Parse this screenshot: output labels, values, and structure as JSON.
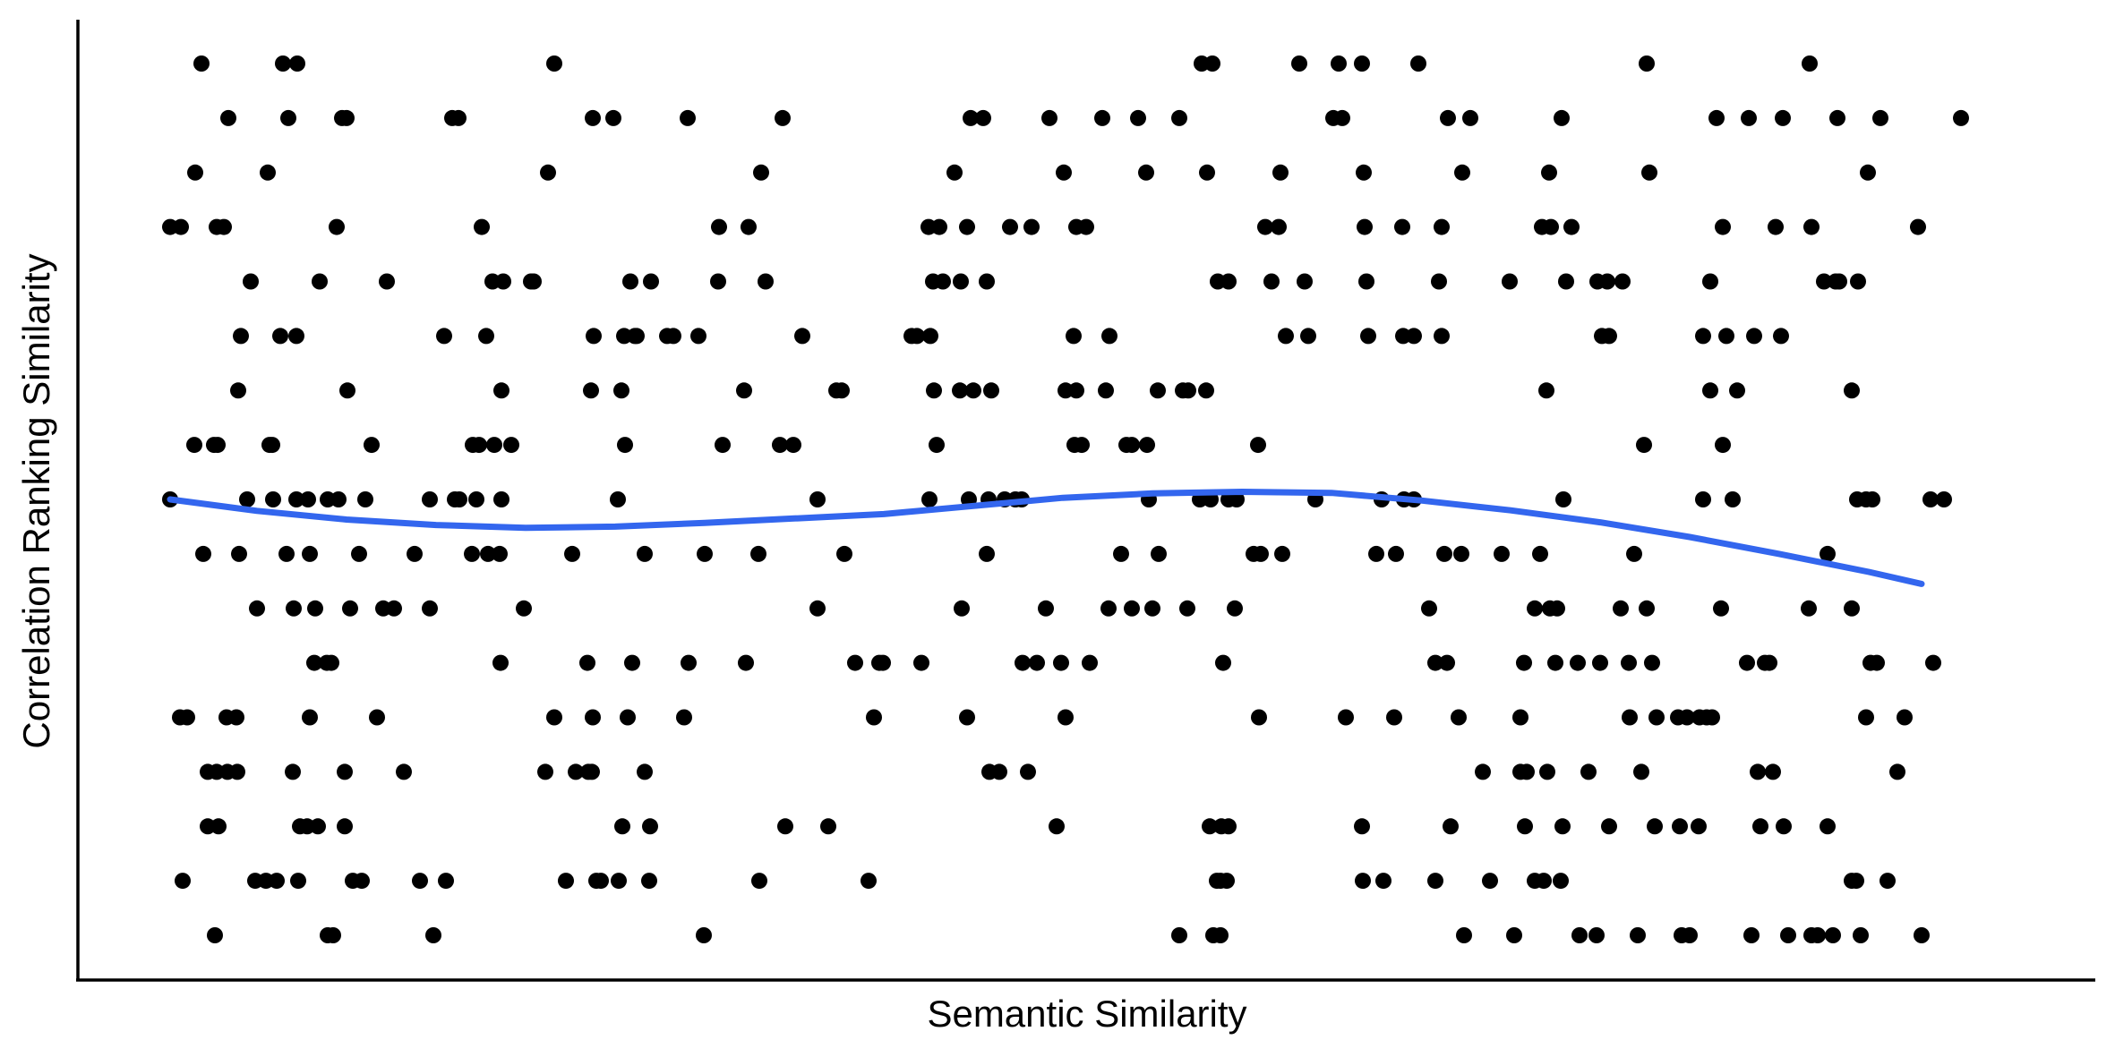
{
  "chart_data": {
    "type": "scatter",
    "title": "",
    "xlabel": "Semantic Similarity",
    "ylabel": "Correlation Ranking Similarity",
    "xlim": [
      0,
      2262
    ],
    "ylim": [
      0,
      17
    ],
    "grid": false,
    "legend": "none",
    "colors": {
      "points": "#000000",
      "trend": "#3366EE",
      "axis": "#000000"
    },
    "points": [
      [
        138,
        16
      ],
      [
        229,
        16
      ],
      [
        245,
        16
      ],
      [
        532,
        16
      ],
      [
        1255,
        16
      ],
      [
        1267,
        16
      ],
      [
        1364,
        16
      ],
      [
        1408,
        16
      ],
      [
        1434,
        16
      ],
      [
        1497,
        16
      ],
      [
        1752,
        16
      ],
      [
        1934,
        16
      ],
      [
        168,
        15
      ],
      [
        235,
        15
      ],
      [
        295,
        15
      ],
      [
        300,
        15
      ],
      [
        418,
        15
      ],
      [
        425,
        15
      ],
      [
        575,
        15
      ],
      [
        598,
        15
      ],
      [
        681,
        15
      ],
      [
        787,
        15
      ],
      [
        997,
        15
      ],
      [
        1011,
        15
      ],
      [
        1085,
        15
      ],
      [
        1144,
        15
      ],
      [
        1184,
        15
      ],
      [
        1230,
        15
      ],
      [
        1402,
        15
      ],
      [
        1412,
        15
      ],
      [
        1530,
        15
      ],
      [
        1555,
        15
      ],
      [
        1657,
        15
      ],
      [
        1830,
        15
      ],
      [
        1866,
        15
      ],
      [
        1904,
        15
      ],
      [
        1965,
        15
      ],
      [
        2013,
        15
      ],
      [
        2103,
        15
      ],
      [
        131,
        14
      ],
      [
        212,
        14
      ],
      [
        525,
        14
      ],
      [
        763,
        14
      ],
      [
        979,
        14
      ],
      [
        1101,
        14
      ],
      [
        1193,
        14
      ],
      [
        1261,
        14
      ],
      [
        1343,
        14
      ],
      [
        1436,
        14
      ],
      [
        1546,
        14
      ],
      [
        1643,
        14
      ],
      [
        1755,
        14
      ],
      [
        1999,
        14
      ],
      [
        103,
        13
      ],
      [
        115,
        13
      ],
      [
        155,
        13
      ],
      [
        163,
        13
      ],
      [
        289,
        13
      ],
      [
        451,
        13
      ],
      [
        716,
        13
      ],
      [
        749,
        13
      ],
      [
        950,
        13
      ],
      [
        962,
        13
      ],
      [
        993,
        13
      ],
      [
        1041,
        13
      ],
      [
        1065,
        13
      ],
      [
        1115,
        13
      ],
      [
        1126,
        13
      ],
      [
        1326,
        13
      ],
      [
        1341,
        13
      ],
      [
        1437,
        13
      ],
      [
        1479,
        13
      ],
      [
        1523,
        13
      ],
      [
        1635,
        13
      ],
      [
        1645,
        13
      ],
      [
        1668,
        13
      ],
      [
        1837,
        13
      ],
      [
        1896,
        13
      ],
      [
        1936,
        13
      ],
      [
        2055,
        13
      ],
      [
        193,
        12
      ],
      [
        270,
        12
      ],
      [
        345,
        12
      ],
      [
        463,
        12
      ],
      [
        475,
        12
      ],
      [
        506,
        12
      ],
      [
        509,
        12
      ],
      [
        617,
        12
      ],
      [
        640,
        12
      ],
      [
        715,
        12
      ],
      [
        768,
        12
      ],
      [
        955,
        12
      ],
      [
        966,
        12
      ],
      [
        986,
        12
      ],
      [
        1015,
        12
      ],
      [
        1273,
        12
      ],
      [
        1285,
        12
      ],
      [
        1333,
        12
      ],
      [
        1370,
        12
      ],
      [
        1439,
        12
      ],
      [
        1520,
        12
      ],
      [
        1599,
        12
      ],
      [
        1662,
        12
      ],
      [
        1697,
        12
      ],
      [
        1708,
        12
      ],
      [
        1725,
        12
      ],
      [
        1823,
        12
      ],
      [
        1950,
        12
      ],
      [
        1963,
        12
      ],
      [
        1967,
        12
      ],
      [
        1988,
        12
      ],
      [
        182,
        11
      ],
      [
        226,
        11
      ],
      [
        244,
        11
      ],
      [
        409,
        11
      ],
      [
        456,
        11
      ],
      [
        576,
        11
      ],
      [
        610,
        11
      ],
      [
        622,
        11
      ],
      [
        624,
        11
      ],
      [
        658,
        11
      ],
      [
        665,
        11
      ],
      [
        693,
        11
      ],
      [
        809,
        11
      ],
      [
        931,
        11
      ],
      [
        937,
        11
      ],
      [
        952,
        11
      ],
      [
        1112,
        11
      ],
      [
        1152,
        11
      ],
      [
        1349,
        11
      ],
      [
        1374,
        11
      ],
      [
        1441,
        11
      ],
      [
        1480,
        11
      ],
      [
        1492,
        11
      ],
      [
        1523,
        11
      ],
      [
        1702,
        11
      ],
      [
        1710,
        11
      ],
      [
        1815,
        11
      ],
      [
        1841,
        11
      ],
      [
        1872,
        11
      ],
      [
        1902,
        11
      ],
      [
        179,
        10
      ],
      [
        301,
        10
      ],
      [
        473,
        10
      ],
      [
        573,
        10
      ],
      [
        607,
        10
      ],
      [
        744,
        10
      ],
      [
        847,
        10
      ],
      [
        853,
        10
      ],
      [
        956,
        10
      ],
      [
        985,
        10
      ],
      [
        1000,
        10
      ],
      [
        1020,
        10
      ],
      [
        1103,
        10
      ],
      [
        1115,
        10
      ],
      [
        1148,
        10
      ],
      [
        1206,
        10
      ],
      [
        1234,
        10
      ],
      [
        1240,
        10
      ],
      [
        1260,
        10
      ],
      [
        1640,
        10
      ],
      [
        1823,
        10
      ],
      [
        1853,
        10
      ],
      [
        1981,
        10
      ],
      [
        130,
        9
      ],
      [
        152,
        9
      ],
      [
        156,
        9
      ],
      [
        214,
        9
      ],
      [
        217,
        9
      ],
      [
        328,
        9
      ],
      [
        441,
        9
      ],
      [
        448,
        9
      ],
      [
        465,
        9
      ],
      [
        484,
        9
      ],
      [
        611,
        9
      ],
      [
        720,
        9
      ],
      [
        784,
        9
      ],
      [
        799,
        9
      ],
      [
        959,
        9
      ],
      [
        1113,
        9
      ],
      [
        1121,
        9
      ],
      [
        1171,
        9
      ],
      [
        1177,
        9
      ],
      [
        1194,
        9
      ],
      [
        1318,
        9
      ],
      [
        1749,
        9
      ],
      [
        1837,
        9
      ],
      [
        103,
        8
      ],
      [
        189,
        8
      ],
      [
        218,
        8
      ],
      [
        244,
        8
      ],
      [
        257,
        8
      ],
      [
        279,
        8
      ],
      [
        291,
        8
      ],
      [
        321,
        8
      ],
      [
        393,
        8
      ],
      [
        421,
        8
      ],
      [
        426,
        8
      ],
      [
        445,
        8
      ],
      [
        473,
        8
      ],
      [
        603,
        8
      ],
      [
        826,
        8
      ],
      [
        951,
        8
      ],
      [
        995,
        8
      ],
      [
        1017,
        8
      ],
      [
        1035,
        8
      ],
      [
        1047,
        8
      ],
      [
        1054,
        8
      ],
      [
        1196,
        8
      ],
      [
        1253,
        8
      ],
      [
        1265,
        8
      ],
      [
        1285,
        8
      ],
      [
        1294,
        8
      ],
      [
        1382,
        8
      ],
      [
        1456,
        8
      ],
      [
        1481,
        8
      ],
      [
        1492,
        8
      ],
      [
        1659,
        8
      ],
      [
        1815,
        8
      ],
      [
        1848,
        8
      ],
      [
        1987,
        8
      ],
      [
        1997,
        8
      ],
      [
        2004,
        8
      ],
      [
        2069,
        8
      ],
      [
        2084,
        8
      ],
      [
        140,
        7
      ],
      [
        180,
        7
      ],
      [
        233,
        7
      ],
      [
        259,
        7
      ],
      [
        314,
        7
      ],
      [
        376,
        7
      ],
      [
        440,
        7
      ],
      [
        458,
        7
      ],
      [
        471,
        7
      ],
      [
        552,
        7
      ],
      [
        633,
        7
      ],
      [
        700,
        7
      ],
      [
        760,
        7
      ],
      [
        856,
        7
      ],
      [
        1015,
        7
      ],
      [
        1165,
        7
      ],
      [
        1207,
        7
      ],
      [
        1313,
        7
      ],
      [
        1321,
        7
      ],
      [
        1345,
        7
      ],
      [
        1450,
        7
      ],
      [
        1472,
        7
      ],
      [
        1526,
        7
      ],
      [
        1545,
        7
      ],
      [
        1590,
        7
      ],
      [
        1633,
        7
      ],
      [
        1738,
        7
      ],
      [
        1954,
        7
      ],
      [
        200,
        6
      ],
      [
        241,
        6
      ],
      [
        265,
        6
      ],
      [
        304,
        6
      ],
      [
        341,
        6
      ],
      [
        353,
        6
      ],
      [
        393,
        6
      ],
      [
        498,
        6
      ],
      [
        826,
        6
      ],
      [
        987,
        6
      ],
      [
        1081,
        6
      ],
      [
        1151,
        6
      ],
      [
        1177,
        6
      ],
      [
        1200,
        6
      ],
      [
        1239,
        6
      ],
      [
        1292,
        6
      ],
      [
        1509,
        6
      ],
      [
        1627,
        6
      ],
      [
        1644,
        6
      ],
      [
        1652,
        6
      ],
      [
        1723,
        6
      ],
      [
        1752,
        6
      ],
      [
        1835,
        6
      ],
      [
        1933,
        6
      ],
      [
        1981,
        6
      ],
      [
        264,
        5
      ],
      [
        278,
        5
      ],
      [
        283,
        5
      ],
      [
        472,
        5
      ],
      [
        569,
        5
      ],
      [
        619,
        5
      ],
      [
        682,
        5
      ],
      [
        746,
        5
      ],
      [
        868,
        5
      ],
      [
        895,
        5
      ],
      [
        899,
        5
      ],
      [
        942,
        5
      ],
      [
        1055,
        5
      ],
      [
        1071,
        5
      ],
      [
        1098,
        5
      ],
      [
        1130,
        5
      ],
      [
        1279,
        5
      ],
      [
        1516,
        5
      ],
      [
        1529,
        5
      ],
      [
        1615,
        5
      ],
      [
        1650,
        5
      ],
      [
        1675,
        5
      ],
      [
        1700,
        5
      ],
      [
        1732,
        5
      ],
      [
        1758,
        5
      ],
      [
        1864,
        5
      ],
      [
        1884,
        5
      ],
      [
        1889,
        5
      ],
      [
        2002,
        5
      ],
      [
        2009,
        5
      ],
      [
        2072,
        5
      ],
      [
        114,
        4
      ],
      [
        122,
        4
      ],
      [
        166,
        4
      ],
      [
        177,
        4
      ],
      [
        259,
        4
      ],
      [
        334,
        4
      ],
      [
        532,
        4
      ],
      [
        575,
        4
      ],
      [
        614,
        4
      ],
      [
        677,
        4
      ],
      [
        889,
        4
      ],
      [
        993,
        4
      ],
      [
        1103,
        4
      ],
      [
        1319,
        4
      ],
      [
        1416,
        4
      ],
      [
        1470,
        4
      ],
      [
        1542,
        4
      ],
      [
        1611,
        4
      ],
      [
        1733,
        4
      ],
      [
        1763,
        4
      ],
      [
        1787,
        4
      ],
      [
        1797,
        4
      ],
      [
        1811,
        4
      ],
      [
        1819,
        4
      ],
      [
        1825,
        4
      ],
      [
        1997,
        4
      ],
      [
        2040,
        4
      ],
      [
        145,
        3
      ],
      [
        155,
        3
      ],
      [
        167,
        3
      ],
      [
        178,
        3
      ],
      [
        240,
        3
      ],
      [
        298,
        3
      ],
      [
        364,
        3
      ],
      [
        522,
        3
      ],
      [
        556,
        3
      ],
      [
        570,
        3
      ],
      [
        574,
        3
      ],
      [
        633,
        3
      ],
      [
        1018,
        3
      ],
      [
        1029,
        3
      ],
      [
        1061,
        3
      ],
      [
        1569,
        3
      ],
      [
        1611,
        3
      ],
      [
        1618,
        3
      ],
      [
        1641,
        3
      ],
      [
        1687,
        3
      ],
      [
        1746,
        3
      ],
      [
        1876,
        3
      ],
      [
        1893,
        3
      ],
      [
        2032,
        3
      ],
      [
        145,
        2
      ],
      [
        157,
        2
      ],
      [
        248,
        2
      ],
      [
        256,
        2
      ],
      [
        268,
        2
      ],
      [
        298,
        2
      ],
      [
        608,
        2
      ],
      [
        639,
        2
      ],
      [
        790,
        2
      ],
      [
        838,
        2
      ],
      [
        1093,
        2
      ],
      [
        1264,
        2
      ],
      [
        1277,
        2
      ],
      [
        1285,
        2
      ],
      [
        1434,
        2
      ],
      [
        1533,
        2
      ],
      [
        1616,
        2
      ],
      [
        1658,
        2
      ],
      [
        1710,
        2
      ],
      [
        1761,
        2
      ],
      [
        1789,
        2
      ],
      [
        1810,
        2
      ],
      [
        1879,
        2
      ],
      [
        1905,
        2
      ],
      [
        1954,
        2
      ],
      [
        117,
        1
      ],
      [
        198,
        1
      ],
      [
        210,
        1
      ],
      [
        222,
        1
      ],
      [
        246,
        1
      ],
      [
        307,
        1
      ],
      [
        317,
        1
      ],
      [
        382,
        1
      ],
      [
        411,
        1
      ],
      [
        545,
        1
      ],
      [
        579,
        1
      ],
      [
        584,
        1
      ],
      [
        604,
        1
      ],
      [
        638,
        1
      ],
      [
        761,
        1
      ],
      [
        883,
        1
      ],
      [
        1272,
        1
      ],
      [
        1276,
        1
      ],
      [
        1283,
        1
      ],
      [
        1435,
        1
      ],
      [
        1458,
        1
      ],
      [
        1516,
        1
      ],
      [
        1577,
        1
      ],
      [
        1627,
        1
      ],
      [
        1637,
        1
      ],
      [
        1656,
        1
      ],
      [
        1981,
        1
      ],
      [
        1986,
        1
      ],
      [
        2021,
        1
      ],
      [
        153,
        0
      ],
      [
        279,
        0
      ],
      [
        285,
        0
      ],
      [
        397,
        0
      ],
      [
        699,
        0
      ],
      [
        1230,
        0
      ],
      [
        1268,
        0
      ],
      [
        1276,
        0
      ],
      [
        1548,
        0
      ],
      [
        1604,
        0
      ],
      [
        1677,
        0
      ],
      [
        1696,
        0
      ],
      [
        1742,
        0
      ],
      [
        1791,
        0
      ],
      [
        1800,
        0
      ],
      [
        1869,
        0
      ],
      [
        1910,
        0
      ],
      [
        1936,
        0
      ],
      [
        1943,
        0
      ],
      [
        1960,
        0
      ],
      [
        1991,
        0
      ],
      [
        2059,
        0
      ]
    ],
    "trend_line": {
      "x": [
        103,
        200,
        300,
        400,
        500,
        600,
        700,
        800,
        900,
        1000,
        1100,
        1200,
        1300,
        1400,
        1500,
        1600,
        1700,
        1800,
        1900,
        2000,
        2059
      ],
      "y": [
        8.0,
        7.79,
        7.63,
        7.53,
        7.48,
        7.5,
        7.57,
        7.65,
        7.73,
        7.88,
        8.03,
        8.11,
        8.14,
        8.12,
        7.98,
        7.8,
        7.58,
        7.31,
        7.0,
        6.67,
        6.45
      ]
    }
  }
}
